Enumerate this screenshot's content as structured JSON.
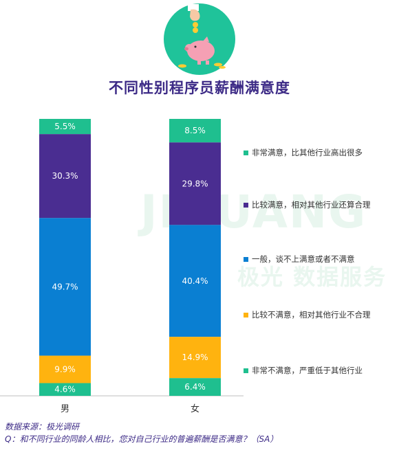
{
  "chart_data": {
    "type": "bar",
    "stacked": true,
    "title": "不同性别程序员薪酬满意度",
    "categories": [
      "男",
      "女"
    ],
    "ylim": [
      0,
      100
    ],
    "series": [
      {
        "name": "非常满意，比其他行业高出很多",
        "color": "#1fbf8f",
        "values": [
          5.5,
          8.5
        ],
        "labels": [
          "5.5%",
          "8.5%"
        ]
      },
      {
        "name": "比较满意，相对其他行业还算合理",
        "color": "#4a2d91",
        "values": [
          30.3,
          29.8
        ],
        "labels": [
          "30.3%",
          "29.8%"
        ]
      },
      {
        "name": "一般，谈不上满意或者不满意",
        "color": "#0a7fd2",
        "values": [
          49.7,
          40.4
        ],
        "labels": [
          "49.7%",
          "40.4%"
        ]
      },
      {
        "name": "比较不满意，相对其他行业不合理",
        "color": "#ffb30f",
        "values": [
          9.9,
          14.9
        ],
        "labels": [
          "9.9%",
          "14.9%"
        ]
      },
      {
        "name": "非常不满意，严重低于其他行业",
        "color": "#1fbf8f",
        "values": [
          4.6,
          6.4
        ],
        "labels": [
          "4.6%",
          "6.4%"
        ]
      }
    ],
    "legend_position": "right",
    "grid": false
  },
  "watermark": {
    "en": "JIGUANG",
    "cn": "极光 数据服务"
  },
  "footer": {
    "source": "数据来源：极光调研",
    "question": "Q：和不同行业的同龄人相比，您对自己行业的普遍薪酬是否满意？（SA）"
  },
  "colors": {
    "title": "#3c2a86",
    "axis": "#bfbfbf",
    "label_text": "#ffffff"
  },
  "icons": {
    "hero": "piggy-bank-coin-icon"
  }
}
